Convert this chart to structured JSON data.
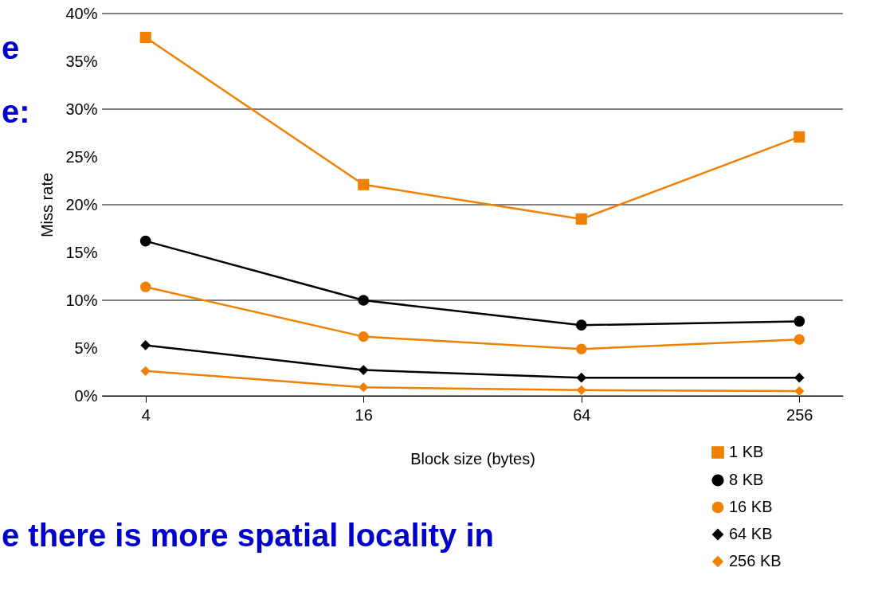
{
  "chart_data": {
    "type": "line",
    "xlabel": "Block size (bytes)",
    "ylabel": "Miss rate",
    "categories": [
      "4",
      "16",
      "64",
      "256"
    ],
    "series": [
      {
        "name": "1 KB",
        "color": "#f08000",
        "marker": "square",
        "values": [
          37.5,
          22.1,
          18.5,
          27.1
        ]
      },
      {
        "name": "8 KB",
        "color": "#000000",
        "marker": "circle",
        "values": [
          16.2,
          10.0,
          7.4,
          7.8
        ]
      },
      {
        "name": "16 KB",
        "color": "#f08000",
        "marker": "circle",
        "values": [
          11.4,
          6.2,
          4.9,
          5.9
        ]
      },
      {
        "name": "64 KB",
        "color": "#000000",
        "marker": "diamond",
        "values": [
          5.3,
          2.7,
          1.9,
          1.9
        ]
      },
      {
        "name": "256 KB",
        "color": "#f08000",
        "marker": "diamond",
        "values": [
          2.6,
          0.9,
          0.6,
          0.5
        ]
      }
    ],
    "ylim": [
      0,
      40
    ],
    "yticks": [
      {
        "value": 0,
        "label": "0%"
      },
      {
        "value": 5,
        "label": "5%"
      },
      {
        "value": 10,
        "label": "10%"
      },
      {
        "value": 15,
        "label": "15%"
      },
      {
        "value": 20,
        "label": "20%"
      },
      {
        "value": 25,
        "label": "25%"
      },
      {
        "value": 30,
        "label": "30%"
      },
      {
        "value": 35,
        "label": "35%"
      },
      {
        "value": 40,
        "label": "40%"
      }
    ],
    "grid": "y",
    "legend": "bottom right",
    "annotations": [
      "e",
      "e:",
      "e there is more spatial locality in"
    ]
  }
}
